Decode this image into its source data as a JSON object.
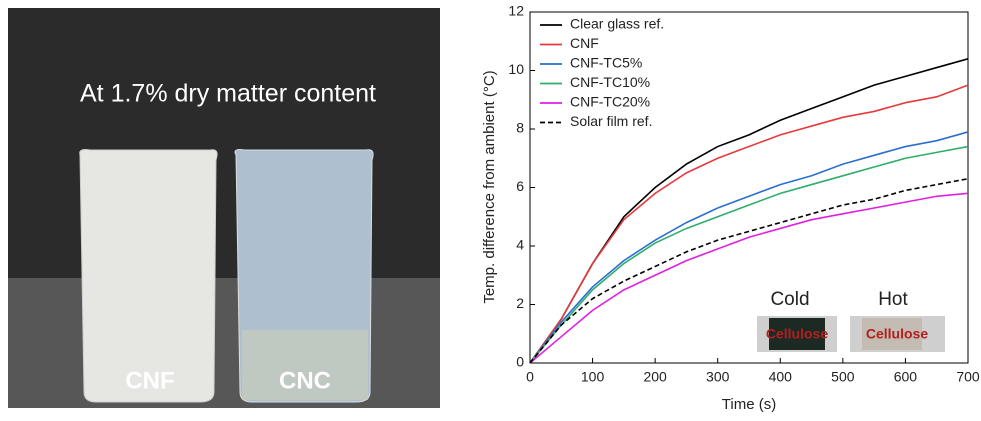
{
  "photo": {
    "caption": "At 1.7% dry matter content",
    "labels": [
      "CNF",
      "CNC"
    ]
  },
  "chart_data": {
    "type": "line",
    "x_label": "Time (s)",
    "y_label": "Temp. difference from ambient (°C)",
    "x": [
      0,
      50,
      100,
      150,
      200,
      250,
      300,
      350,
      400,
      450,
      500,
      550,
      600,
      650,
      700
    ],
    "series": [
      {
        "name": "Clear glass ref.",
        "color": "#000000",
        "dash": false,
        "values": [
          0,
          1.5,
          3.4,
          5.0,
          6.0,
          6.8,
          7.4,
          7.8,
          8.3,
          8.7,
          9.1,
          9.5,
          9.8,
          10.1,
          10.4
        ]
      },
      {
        "name": "CNF",
        "color": "#e8393c",
        "dash": false,
        "values": [
          0,
          1.5,
          3.4,
          4.9,
          5.8,
          6.5,
          7.0,
          7.4,
          7.8,
          8.1,
          8.4,
          8.6,
          8.9,
          9.1,
          9.5
        ]
      },
      {
        "name": "CNF-TC5%",
        "color": "#2a6fd1",
        "dash": false,
        "values": [
          0,
          1.4,
          2.6,
          3.5,
          4.2,
          4.8,
          5.3,
          5.7,
          6.1,
          6.4,
          6.8,
          7.1,
          7.4,
          7.6,
          7.9
        ]
      },
      {
        "name": "CNF-TC10%",
        "color": "#2fae6a",
        "dash": false,
        "values": [
          0,
          1.3,
          2.5,
          3.4,
          4.1,
          4.6,
          5.0,
          5.4,
          5.8,
          6.1,
          6.4,
          6.7,
          7.0,
          7.2,
          7.4
        ]
      },
      {
        "name": "CNF-TC20%",
        "color": "#e020e0",
        "dash": false,
        "values": [
          0,
          0.9,
          1.8,
          2.5,
          3.0,
          3.5,
          3.9,
          4.3,
          4.6,
          4.9,
          5.1,
          5.3,
          5.5,
          5.7,
          5.8
        ]
      },
      {
        "name": "Solar film ref.",
        "color": "#000000",
        "dash": true,
        "values": [
          0,
          1.3,
          2.2,
          2.8,
          3.3,
          3.8,
          4.2,
          4.5,
          4.8,
          5.1,
          5.4,
          5.6,
          5.9,
          6.1,
          6.3
        ]
      }
    ],
    "xlim": [
      0,
      700
    ],
    "xticks": [
      0,
      100,
      200,
      300,
      400,
      500,
      600,
      700
    ],
    "ylim": [
      0,
      12
    ],
    "yticks": [
      0,
      2,
      4,
      6,
      8,
      10,
      12
    ],
    "legend": "upper-left",
    "inset": {
      "labels": [
        "Cold",
        "Hot"
      ],
      "sample_text": [
        "Cellulose",
        "Cellulose"
      ]
    }
  }
}
